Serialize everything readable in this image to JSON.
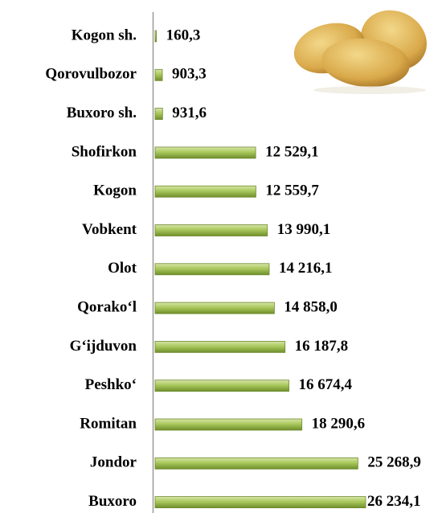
{
  "chart_data": {
    "type": "bar",
    "orientation": "horizontal",
    "color": "#9bbb59",
    "categories": [
      "Kogon sh.",
      "Qorovulbozor",
      "Buxoro sh.",
      "Shofirkon",
      "Kogon",
      "Vobkent",
      "Olot",
      "Qorako‘l",
      "G‘ijduvon",
      "Peshko‘",
      "Romitan",
      "Jondor",
      "Buxoro"
    ],
    "values": [
      160.3,
      903.3,
      931.6,
      12529.1,
      12559.7,
      13990.1,
      14216.1,
      14858.0,
      16187.8,
      16674.4,
      18290.6,
      25268.9,
      26234.1
    ],
    "value_labels": [
      "160,3",
      "903,3",
      "931,6",
      "12 529,1",
      "12 559,7",
      "13 990,1",
      "14 216,1",
      "14 858,0",
      "16 187,8",
      "16 674,4",
      "18 290,6",
      "25 268,9",
      "26 234,1"
    ]
  }
}
